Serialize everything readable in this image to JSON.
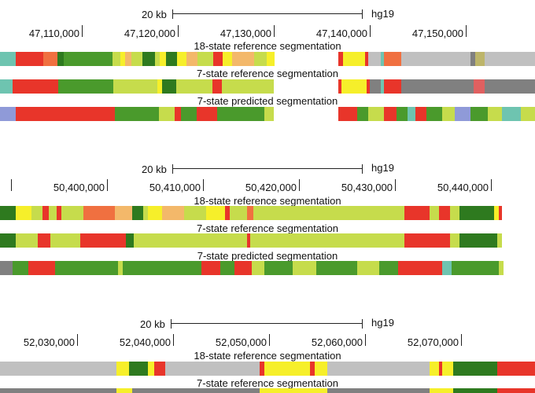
{
  "colors": {
    "red": "#e8352a",
    "orange": "#f07040",
    "dkgreen": "#2e7a1f",
    "green": "#4a9a2c",
    "ltgreen": "#c6dc4c",
    "yellow": "#f6ef2a",
    "peach": "#f3b86a",
    "grey": "#c0c0c0",
    "dkgrey": "#808080",
    "teal": "#6ec4b0",
    "blue": "#8f9ad8",
    "olive": "#bdb56a",
    "pink": "#e06060"
  },
  "panels": [
    {
      "scale_label": "20 kb",
      "assembly": "hg19",
      "ticks": [
        {
          "label": "47,110,000"
        },
        {
          "label": "47,120,000"
        },
        {
          "label": "47,130,000"
        },
        {
          "label": "47,140,000"
        },
        {
          "label": "47,150,000"
        }
      ],
      "tracks": [
        {
          "label": "18-state reference segmentation"
        },
        {
          "label": "7-state reference segmentation"
        },
        {
          "label": "7-state predicted segmentation"
        }
      ]
    },
    {
      "scale_label": "20 kb",
      "assembly": "hg19",
      "ticks": [
        {
          "label": ""
        },
        {
          "label": "50,400,000"
        },
        {
          "label": "50,410,000"
        },
        {
          "label": "50,420,000"
        },
        {
          "label": "50,430,000"
        },
        {
          "label": "50,440,000"
        }
      ],
      "tracks": [
        {
          "label": "18-state reference segmentation"
        },
        {
          "label": "7-state reference segmentation"
        },
        {
          "label": "7-state predicted segmentation"
        }
      ]
    },
    {
      "scale_label": "20 kb",
      "assembly": "hg19",
      "ticks": [
        {
          "label": "52,030,000"
        },
        {
          "label": "52,040,000"
        },
        {
          "label": "52,050,000"
        },
        {
          "label": "52,060,000"
        },
        {
          "label": "52,070,000"
        }
      ],
      "tracks": [
        {
          "label": "18-state reference segmentation"
        },
        {
          "label": "7-state reference segmentation"
        }
      ]
    }
  ]
}
